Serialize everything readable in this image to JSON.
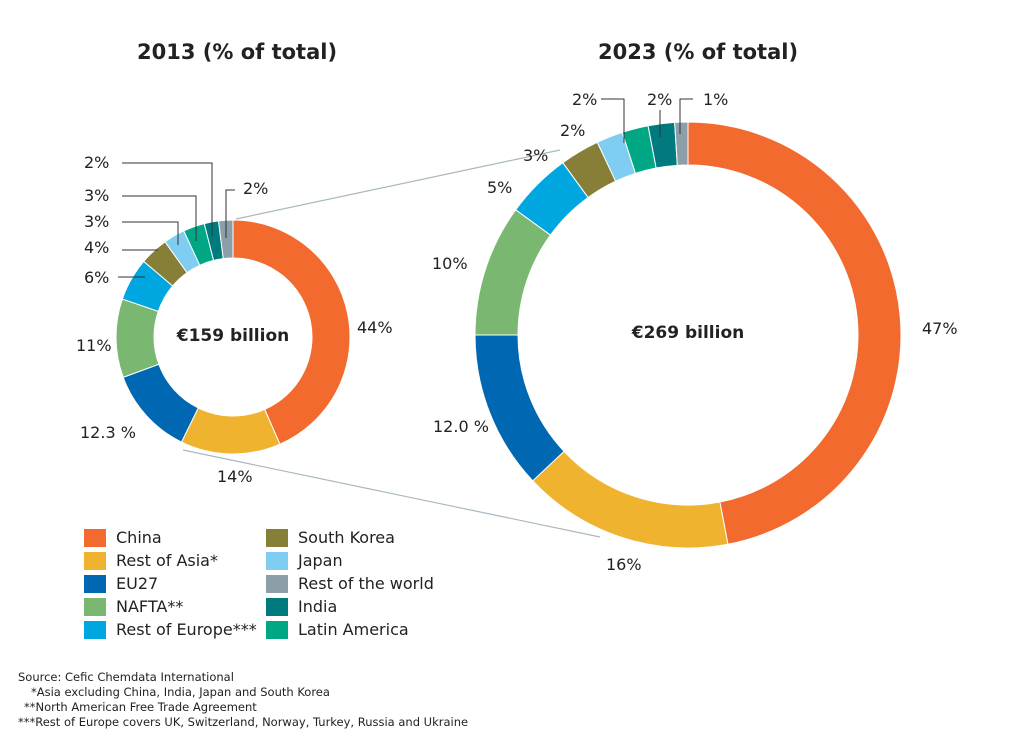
{
  "chart_data": [
    {
      "type": "donut",
      "title": "2013 (% of total)",
      "center_label": "€159 billion",
      "categories": [
        "China",
        "Rest of Asia*",
        "EU27",
        "NAFTA**",
        "Rest of Europe***",
        "South Korea",
        "Japan",
        "Latin America",
        "India",
        "Rest of the world"
      ],
      "values": [
        44,
        14,
        12.3,
        11,
        6,
        4,
        3,
        3,
        2,
        2
      ],
      "data_labels": [
        "44%",
        "14%",
        "12.3 %",
        "11%",
        "6%",
        "4%",
        "3%",
        "3%",
        "2%",
        "2%"
      ]
    },
    {
      "type": "donut",
      "title": "2023 (% of total)",
      "center_label": "€269 billion",
      "categories": [
        "China",
        "Rest of Asia*",
        "EU27",
        "NAFTA**",
        "Rest of Europe***",
        "South Korea",
        "Japan",
        "Latin America",
        "India",
        "Rest of the world"
      ],
      "values": [
        47,
        16,
        12.0,
        10,
        5,
        3,
        2,
        2,
        2,
        1
      ],
      "data_labels": [
        "47%",
        "16%",
        "12.0 %",
        "10%",
        "5%",
        "3%",
        "2%",
        "2%",
        "2%",
        "1%"
      ]
    }
  ],
  "colors": [
    "#f26a2e",
    "#f0b330",
    "#0068b3",
    "#7ab871",
    "#00a6e0",
    "#877f37",
    "#7fcdf0",
    "#00a785",
    "#007a7e",
    "#8c9ea8"
  ],
  "legend": {
    "col1": [
      {
        "label": "China",
        "color": "#f26a2e"
      },
      {
        "label": "Rest of Asia*",
        "color": "#f0b330"
      },
      {
        "label": "EU27",
        "color": "#0068b3"
      },
      {
        "label": "NAFTA**",
        "color": "#7ab871"
      },
      {
        "label": "Rest of Europe***",
        "color": "#00a6e0"
      }
    ],
    "col2": [
      {
        "label": "South Korea",
        "color": "#877f37"
      },
      {
        "label": "Japan",
        "color": "#7fcdf0"
      },
      {
        "label": "Rest of the world",
        "color": "#8c9ea8"
      },
      {
        "label": "India",
        "color": "#007a7e"
      },
      {
        "label": "Latin America",
        "color": "#00a785"
      }
    ]
  },
  "notes": [
    "Source: Cefic Chemdata International",
    "*Asia excluding China, India, Japan and South Korea",
    "**North American Free Trade Agreement",
    "***Rest of Europe covers UK, Switzerland, Norway, Turkey, Russia and Ukraine"
  ]
}
